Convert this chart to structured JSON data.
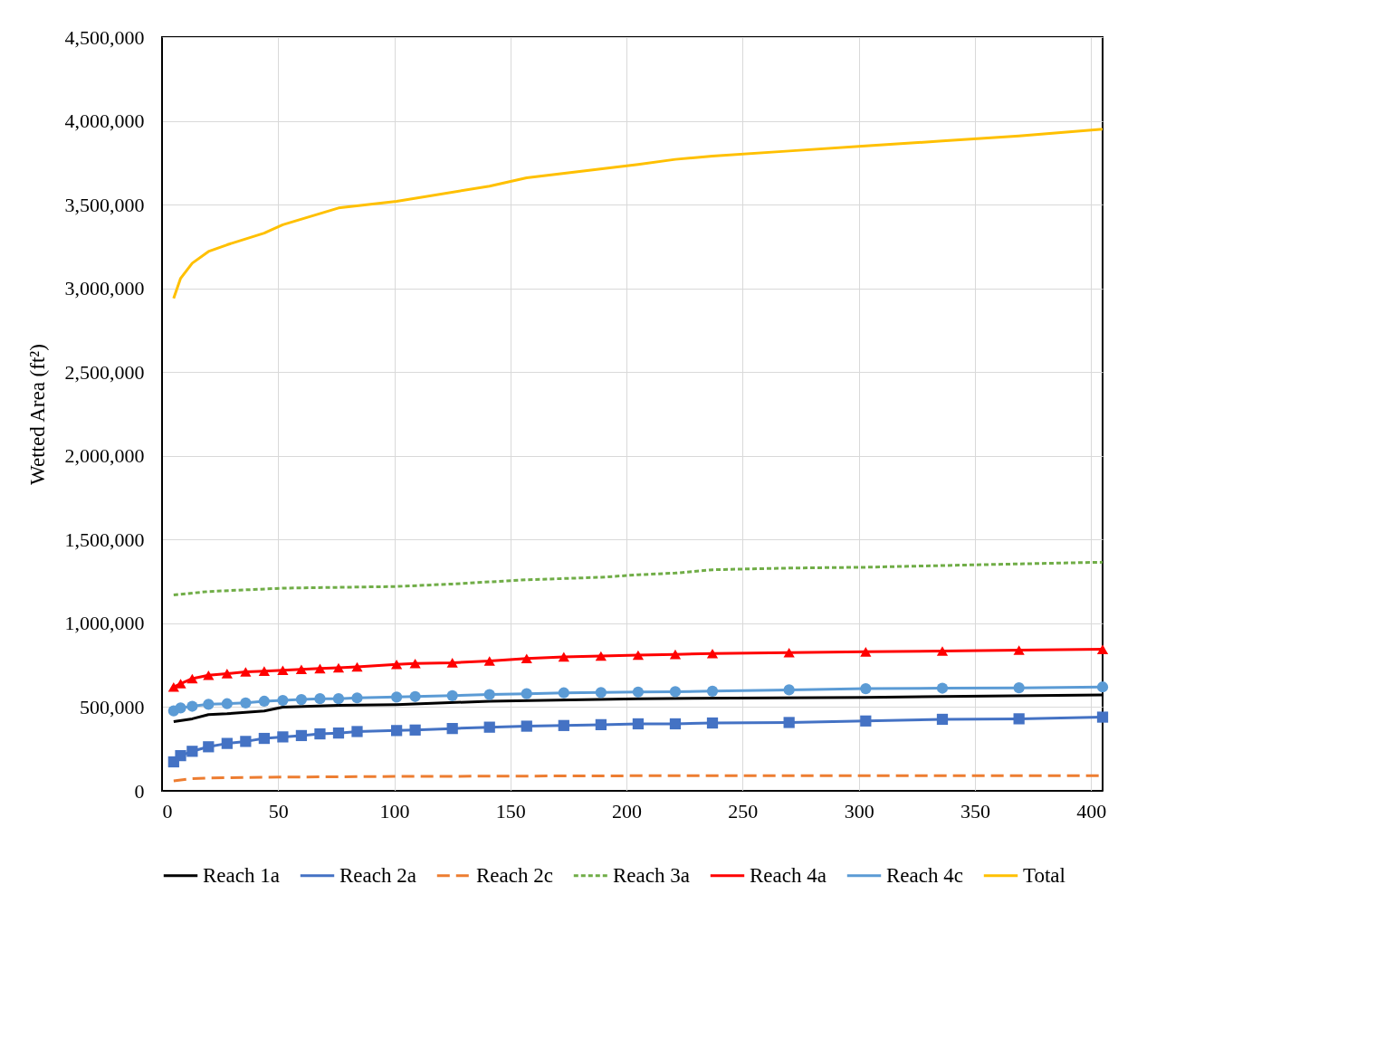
{
  "chart_data": {
    "type": "line",
    "ylabel": "Wetted Area (ft²)",
    "xlim": [
      0,
      405
    ],
    "xticks": [
      0,
      50,
      100,
      150,
      200,
      250,
      300,
      350,
      400
    ],
    "ylim": [
      0,
      4500000
    ],
    "yticks": [
      0,
      {
        "value": 500000,
        "label": "500,000"
      },
      {
        "value": 1000000,
        "label": "1,000,000"
      },
      {
        "value": 1500000,
        "label": "1,500,000"
      },
      {
        "value": 2000000,
        "label": "2,000,000"
      },
      {
        "value": 2500000,
        "label": "2,500,000"
      },
      {
        "value": 3000000,
        "label": "3,000,000"
      },
      {
        "value": 3500000,
        "label": "3,500,000"
      },
      {
        "value": 4000000,
        "label": "4,000,000"
      },
      {
        "value": 4500000,
        "label": "4,500,000"
      }
    ],
    "grid": true,
    "legend": "bottom",
    "series": [
      {
        "name": "Reach 1a",
        "color": "#000000",
        "marker": "none",
        "line_style": "solid",
        "x": [
          5,
          13,
          20,
          28,
          44,
          52,
          76,
          101,
          141,
          205,
          303,
          405
        ],
        "values": [
          413000,
          430000,
          455000,
          460000,
          477000,
          500000,
          510000,
          515000,
          535000,
          550000,
          558000,
          572000
        ]
      },
      {
        "name": "Reach 2a",
        "color": "#4472c4",
        "marker": "square",
        "line_style": "solid",
        "x": [
          5,
          8,
          13,
          20,
          28,
          36,
          44,
          52,
          60,
          68,
          76,
          84,
          101,
          109,
          125,
          141,
          157,
          173,
          189,
          205,
          221,
          237,
          270,
          303,
          336,
          369,
          405
        ],
        "values": [
          173000,
          210000,
          236000,
          263000,
          283000,
          295000,
          313000,
          322000,
          330000,
          340000,
          345000,
          354000,
          360000,
          363000,
          372000,
          380000,
          386000,
          390000,
          395000,
          400000,
          400000,
          405000,
          408000,
          417000,
          427000,
          430000,
          440000
        ]
      },
      {
        "name": "Reach 2c",
        "color": "#ed7d31",
        "marker": "none",
        "line_style": "dashed",
        "x": [
          5,
          13,
          20,
          52,
          101,
          205,
          405
        ],
        "values": [
          60000,
          73000,
          77000,
          82000,
          86000,
          90000,
          90000
        ]
      },
      {
        "name": "Reach 3a",
        "color": "#70ad47",
        "marker": "none",
        "line_style": "dotted",
        "x": [
          5,
          20,
          52,
          101,
          125,
          157,
          189,
          205,
          221,
          237,
          270,
          303,
          336,
          369,
          405
        ],
        "values": [
          1170000,
          1190000,
          1210000,
          1220000,
          1235000,
          1260000,
          1275000,
          1290000,
          1300000,
          1320000,
          1330000,
          1335000,
          1345000,
          1355000,
          1365000
        ]
      },
      {
        "name": "Reach 4a",
        "color": "#ff0000",
        "marker": "triangle",
        "line_style": "solid",
        "x": [
          5,
          8,
          13,
          20,
          28,
          36,
          44,
          52,
          60,
          68,
          76,
          84,
          101,
          109,
          125,
          141,
          157,
          173,
          189,
          205,
          221,
          237,
          270,
          303,
          336,
          369,
          405
        ],
        "values": [
          620000,
          640000,
          670000,
          690000,
          700000,
          710000,
          715000,
          720000,
          725000,
          730000,
          735000,
          740000,
          755000,
          760000,
          765000,
          775000,
          790000,
          800000,
          805000,
          810000,
          815000,
          820000,
          825000,
          830000,
          835000,
          840000,
          845000
        ]
      },
      {
        "name": "Reach 4c",
        "color": "#5b9bd5",
        "marker": "circle",
        "line_style": "solid",
        "x": [
          5,
          8,
          13,
          20,
          28,
          36,
          44,
          52,
          60,
          68,
          76,
          84,
          101,
          109,
          125,
          141,
          157,
          173,
          189,
          205,
          221,
          237,
          270,
          303,
          336,
          369,
          405
        ],
        "values": [
          477000,
          495000,
          505000,
          517000,
          520000,
          525000,
          535000,
          540000,
          545000,
          550000,
          550000,
          555000,
          560000,
          563000,
          568000,
          575000,
          580000,
          585000,
          587000,
          590000,
          592000,
          595000,
          603000,
          610000,
          613000,
          615000,
          620000
        ]
      },
      {
        "name": "Total",
        "color": "#ffc000",
        "marker": "none",
        "line_style": "solid",
        "x": [
          5,
          8,
          13,
          20,
          28,
          44,
          52,
          76,
          101,
          141,
          157,
          205,
          221,
          237,
          270,
          303,
          336,
          369,
          405
        ],
        "values": [
          2940000,
          3060000,
          3150000,
          3220000,
          3260000,
          3330000,
          3380000,
          3480000,
          3520000,
          3610000,
          3660000,
          3740000,
          3770000,
          3790000,
          3820000,
          3850000,
          3880000,
          3910000,
          3950000
        ]
      }
    ]
  }
}
